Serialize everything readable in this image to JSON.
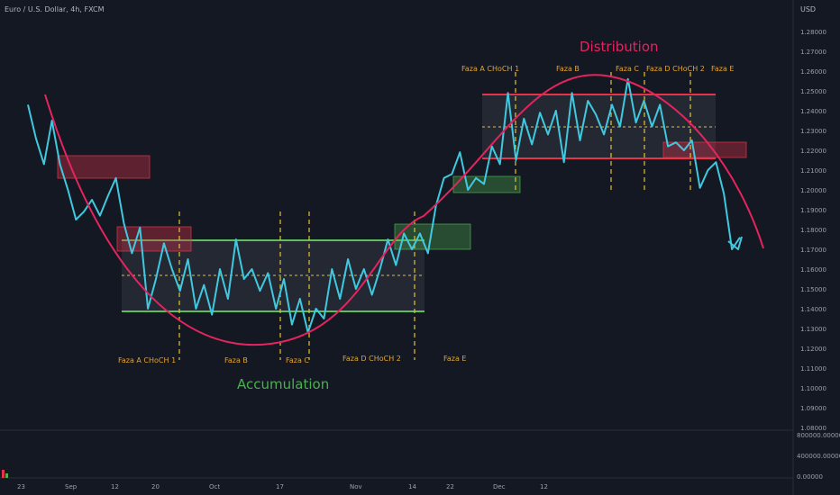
{
  "header": {
    "symbol_title": "Euro / U.S. Dollar, 4h, FXCM"
  },
  "price_scale": {
    "currency": "USD",
    "ticks": [
      "1.28000",
      "1.27000",
      "1.26000",
      "1.25000",
      "1.24000",
      "1.23000",
      "1.22000",
      "1.21000",
      "1.20000",
      "1.19000",
      "1.18000",
      "1.17000",
      "1.16000",
      "1.15000",
      "1.14000",
      "1.13000",
      "1.12000",
      "1.11000",
      "1.10000",
      "1.09000",
      "1.08000"
    ]
  },
  "volume_scale": {
    "ticks": [
      "800000.00000",
      "400000.00000",
      "0.00000"
    ]
  },
  "time_axis": {
    "labels": [
      "23",
      "Sep",
      "12",
      "20",
      "Oct",
      "17",
      "Nov",
      "14",
      "22",
      "Dec",
      "12"
    ]
  },
  "annotations": {
    "accumulation": "Accumulation",
    "distribution": "Distribution",
    "phases_bottom": [
      "Faza A CHoCH 1",
      "Faza B",
      "Faza C",
      "Faza D CHoCH 2",
      "Faza E"
    ],
    "phases_top": [
      "Faza A CHoCH 1",
      "Faza B",
      "Faza C",
      "Faza D CHoCH 2",
      "Faza E"
    ]
  },
  "colors": {
    "background": "#141822",
    "price_line": "#3fc9e0",
    "curve": "#e5245f",
    "range_green": "#5cbf5c",
    "range_red": "#e5334b",
    "phase_label": "#e5a330",
    "phase_line": "#e5c330",
    "accumulation_text": "#4caf50",
    "distribution_text": "#e5245f",
    "axis_text": "#9aa0ab"
  },
  "chart_data": {
    "type": "line",
    "title": "Euro / U.S. Dollar, 4h, FXCM",
    "xlabel": "",
    "ylabel": "",
    "ylim": [
      1.08,
      1.29
    ],
    "x_labels": [
      "23",
      "Sep",
      "12",
      "20",
      "Oct",
      "17",
      "Nov",
      "14",
      "22",
      "Dec",
      "12"
    ],
    "series": [
      {
        "values": [
          1.243,
          1.226,
          1.213,
          1.235,
          1.213,
          1.2,
          1.185,
          1.189,
          1.195,
          1.187,
          1.197,
          1.206,
          1.183,
          1.168,
          1.181,
          1.14,
          1.155,
          1.173,
          1.16,
          1.149,
          1.165,
          1.14,
          1.152,
          1.137,
          1.16,
          1.145,
          1.175,
          1.155,
          1.16,
          1.149,
          1.158,
          1.14,
          1.155,
          1.132,
          1.145,
          1.128,
          1.14,
          1.135,
          1.16,
          1.145,
          1.165,
          1.15,
          1.16,
          1.147,
          1.16,
          1.175,
          1.162,
          1.178,
          1.17,
          1.178,
          1.168,
          1.192,
          1.206,
          1.208,
          1.219,
          1.2,
          1.206,
          1.203,
          1.222,
          1.213,
          1.249,
          1.215,
          1.236,
          1.223,
          1.239,
          1.228,
          1.24,
          1.214,
          1.249,
          1.225,
          1.245,
          1.238,
          1.228,
          1.243,
          1.232,
          1.256,
          1.234,
          1.245,
          1.232,
          1.243,
          1.222,
          1.224,
          1.22,
          1.225,
          1.201,
          1.21,
          1.214,
          1.198,
          1.17,
          1.176
        ]
      }
    ],
    "zones": {
      "accumulation_range": {
        "top": 1.175,
        "bottom": 1.139
      },
      "distribution_range": {
        "top": 1.248,
        "bottom": 1.216
      }
    }
  }
}
